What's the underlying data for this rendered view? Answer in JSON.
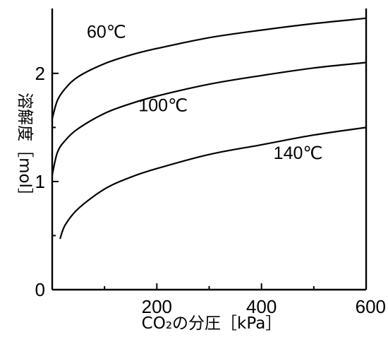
{
  "chart_data": {
    "type": "line",
    "xlabel": "CO₂の分圧［kPa］",
    "ylabel": "溶解度［mol］",
    "xlim": [
      0,
      600
    ],
    "ylim": [
      0,
      2.6
    ],
    "x_ticks": [
      200,
      400,
      600
    ],
    "y_ticks": [
      0,
      1,
      2
    ],
    "grid": false,
    "series": [
      {
        "name": "60℃",
        "x": [
          0,
          10,
          25,
          50,
          100,
          150,
          200,
          300,
          400,
          500,
          600
        ],
        "y": [
          1.58,
          1.75,
          1.86,
          1.97,
          2.09,
          2.17,
          2.23,
          2.33,
          2.4,
          2.46,
          2.51
        ]
      },
      {
        "name": "100℃",
        "x": [
          0,
          10,
          25,
          50,
          100,
          150,
          200,
          300,
          400,
          500,
          600
        ],
        "y": [
          1.06,
          1.27,
          1.38,
          1.49,
          1.63,
          1.72,
          1.79,
          1.9,
          1.98,
          2.05,
          2.1
        ]
      },
      {
        "name": "140℃",
        "x": [
          15,
          25,
          50,
          100,
          150,
          200,
          300,
          400,
          500,
          600
        ],
        "y": [
          0.47,
          0.6,
          0.75,
          0.93,
          1.04,
          1.12,
          1.25,
          1.34,
          1.43,
          1.5
        ]
      }
    ]
  }
}
